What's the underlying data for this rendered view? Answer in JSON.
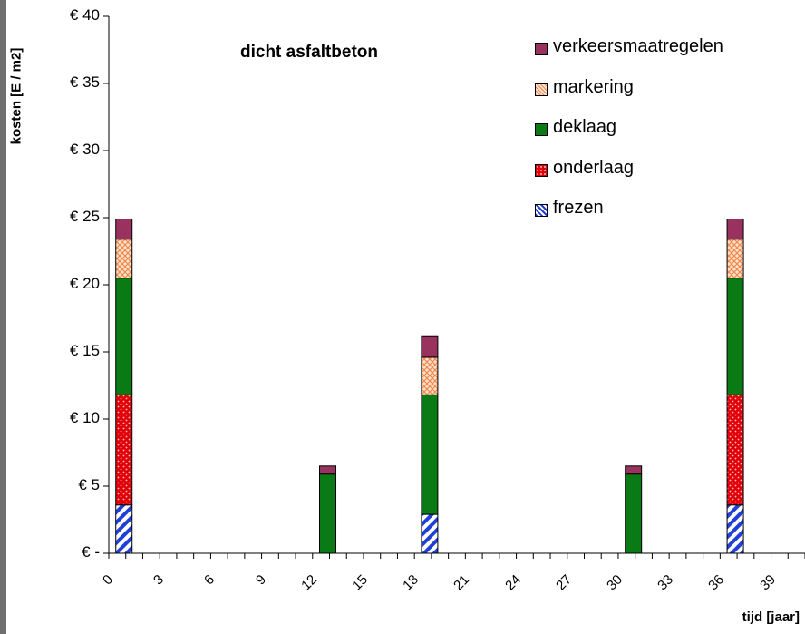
{
  "chart_data": {
    "type": "bar",
    "stacked": true,
    "title": "dicht asfaltbeton",
    "xlabel": "tijd [jaar]",
    "ylabel": "kosten [E / m2]",
    "ylim": [
      0,
      40
    ],
    "xlim": [
      0,
      41
    ],
    "ytick_labels": [
      "€ -",
      "€ 5",
      "€ 10",
      "€ 15",
      "€ 20",
      "€ 25",
      "€ 30",
      "€ 35",
      "€ 40"
    ],
    "ytick_values": [
      0,
      5,
      10,
      15,
      20,
      25,
      30,
      35,
      40
    ],
    "xtick_labels": [
      "0",
      "3",
      "6",
      "9",
      "12",
      "15",
      "18",
      "21",
      "24",
      "27",
      "30",
      "33",
      "36",
      "39"
    ],
    "xtick_values": [
      0,
      3,
      6,
      9,
      12,
      15,
      18,
      21,
      24,
      27,
      30,
      33,
      36,
      39
    ],
    "x": [
      1,
      13,
      19,
      31,
      37
    ],
    "series": [
      {
        "name": "frezen",
        "color": "#1f3fd6",
        "pattern": "hatch",
        "values": [
          3.6,
          0,
          2.9,
          0,
          3.6
        ]
      },
      {
        "name": "onderlaag",
        "color": "#e0000a",
        "pattern": "dots",
        "values": [
          8.2,
          0,
          0,
          0,
          8.2
        ]
      },
      {
        "name": "deklaag",
        "color": "#0a7a14",
        "pattern": "solid",
        "values": [
          8.7,
          5.9,
          8.9,
          5.9,
          8.7
        ]
      },
      {
        "name": "markering",
        "color": "#f3a06a",
        "pattern": "crosshatch",
        "values": [
          2.9,
          0,
          2.8,
          0,
          2.9
        ]
      },
      {
        "name": "verkeersmaatregelen",
        "color": "#99325f",
        "pattern": "solid",
        "values": [
          1.5,
          0.6,
          1.6,
          0.6,
          1.5
        ]
      }
    ],
    "legend_position": "top-right",
    "grid": false
  }
}
